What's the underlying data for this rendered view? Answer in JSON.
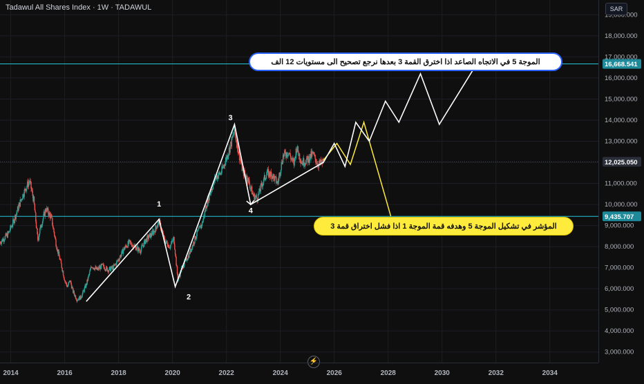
{
  "header": {
    "title": "Tadawul All Shares Index · 1W · TADAWUL",
    "currency": "SAR"
  },
  "icons": {
    "footer_icon": "lightning-icon"
  },
  "colors": {
    "background": "#0f0f0f",
    "hline": "#26c6da",
    "price_badge_teal": "#1e8a99",
    "price_badge_dark": "#2a2e39",
    "up": "#26a69a",
    "down": "#ef5350",
    "path_white": "#ffffff",
    "path_yellow": "#ffeb3b"
  },
  "annotations": {
    "callout_white": "الموجة 5 في الاتجاه الصاعد اذا اخترق القمة 3 بعدها نرجع تصحيح الى مستويات 12 الف",
    "callout_yellow": "المؤشر في تشكيل الموجة 5 وهدفه قمة الموجة 1 اذا فشل اختراق قمة 3"
  },
  "chart_data": {
    "type": "line",
    "title": "Tadawul All Shares Index · 1W · TADAWUL",
    "y_axis": {
      "position": "right",
      "ticks": [
        3000,
        4000,
        5000,
        6000,
        7000,
        8000,
        9000,
        10000,
        11000,
        12000,
        13000,
        14000,
        15000,
        16000,
        17000,
        18000,
        19000
      ],
      "tick_labels": [
        "3,000.000",
        "4,000.000",
        "5,000.000",
        "6,000.000",
        "7,000.000",
        "8,000.000",
        "9,000.000",
        "10,000.000",
        "11,000.000",
        "12,000.000",
        "13,000.000",
        "14,000.000",
        "15,000.000",
        "16,000.000",
        "17,000.000",
        "18,000.000",
        "19,000.000"
      ],
      "range": [
        2500,
        19700
      ]
    },
    "x_axis": {
      "ticks": [
        2014,
        2016,
        2018,
        2020,
        2022,
        2024,
        2026,
        2028,
        2030,
        2032,
        2034
      ],
      "tick_labels": [
        "2014",
        "2016",
        "2018",
        "2020",
        "2022",
        "2024",
        "2026",
        "2028",
        "2030",
        "2032",
        "2034"
      ],
      "range": [
        2013.6,
        2035.8
      ]
    },
    "horizontal_lines": [
      {
        "value": 16668.541,
        "label": "16,668.541",
        "style": "teal"
      },
      {
        "value": 12025.05,
        "label": "12,025.050",
        "style": "dark"
      },
      {
        "value": 9435.707,
        "label": "9,435.707",
        "style": "teal"
      }
    ],
    "price_series": [
      [
        2013.6,
        8200
      ],
      [
        2013.9,
        8600
      ],
      [
        2014.1,
        9200
      ],
      [
        2014.4,
        10300
      ],
      [
        2014.6,
        10900
      ],
      [
        2014.7,
        11100
      ],
      [
        2014.85,
        10200
      ],
      [
        2015.0,
        8300
      ],
      [
        2015.1,
        8900
      ],
      [
        2015.3,
        9800
      ],
      [
        2015.5,
        9400
      ],
      [
        2015.7,
        8000
      ],
      [
        2015.9,
        7000
      ],
      [
        2016.0,
        6400
      ],
      [
        2016.1,
        6100
      ],
      [
        2016.2,
        6400
      ],
      [
        2016.3,
        5900
      ],
      [
        2016.45,
        5500
      ],
      [
        2016.6,
        5600
      ],
      [
        2016.8,
        6200
      ],
      [
        2017.0,
        7100
      ],
      [
        2017.2,
        6900
      ],
      [
        2017.4,
        7100
      ],
      [
        2017.6,
        6900
      ],
      [
        2017.8,
        7000
      ],
      [
        2018.0,
        7400
      ],
      [
        2018.2,
        7900
      ],
      [
        2018.4,
        8200
      ],
      [
        2018.6,
        8000
      ],
      [
        2018.8,
        7800
      ],
      [
        2019.0,
        8300
      ],
      [
        2019.3,
        8700
      ],
      [
        2019.5,
        9200
      ],
      [
        2019.7,
        8300
      ],
      [
        2019.9,
        8000
      ],
      [
        2020.05,
        8400
      ],
      [
        2020.2,
        6400
      ],
      [
        2020.35,
        7000
      ],
      [
        2020.6,
        7600
      ],
      [
        2020.9,
        8600
      ],
      [
        2021.1,
        9100
      ],
      [
        2021.3,
        10200
      ],
      [
        2021.6,
        11300
      ],
      [
        2021.8,
        11500
      ],
      [
        2022.0,
        12200
      ],
      [
        2022.15,
        12800
      ],
      [
        2022.3,
        13500
      ],
      [
        2022.45,
        12500
      ],
      [
        2022.6,
        11600
      ],
      [
        2022.8,
        11200
      ],
      [
        2023.0,
        10400
      ],
      [
        2023.15,
        10300
      ],
      [
        2023.3,
        10900
      ],
      [
        2023.5,
        11500
      ],
      [
        2023.7,
        11400
      ],
      [
        2023.9,
        11000
      ],
      [
        2024.1,
        12300
      ],
      [
        2024.3,
        12500
      ],
      [
        2024.5,
        11900
      ],
      [
        2024.6,
        12700
      ],
      [
        2024.8,
        12000
      ],
      [
        2025.0,
        12100
      ],
      [
        2025.2,
        12400
      ],
      [
        2025.4,
        11900
      ],
      [
        2025.6,
        12000
      ]
    ],
    "wave_labels": [
      {
        "label": "1",
        "x": 2019.5,
        "y": 9900
      },
      {
        "label": "2",
        "x": 2020.6,
        "y": 5500
      },
      {
        "label": "3",
        "x": 2022.15,
        "y": 14000
      },
      {
        "label": "4",
        "x": 2022.9,
        "y": 9600
      }
    ],
    "white_path": [
      [
        2016.8,
        5400
      ],
      [
        2019.5,
        9300
      ],
      [
        2020.1,
        6100
      ],
      [
        2022.3,
        13800
      ],
      [
        2022.9,
        10000
      ],
      [
        2025.6,
        12000
      ],
      [
        2026.0,
        12900
      ],
      [
        2026.4,
        11800
      ],
      [
        2026.8,
        13900
      ],
      [
        2027.3,
        13000
      ],
      [
        2027.9,
        14900
      ],
      [
        2028.4,
        13900
      ],
      [
        2029.2,
        16200
      ],
      [
        2029.9,
        13800
      ],
      [
        2031.3,
        16700
      ]
    ],
    "white_arrow_heads": [
      [
        2022.9,
        10000
      ],
      [
        2031.3,
        16700
      ]
    ],
    "yellow_path": [
      [
        2025.6,
        12100
      ],
      [
        2026.1,
        12900
      ],
      [
        2026.6,
        11900
      ],
      [
        2027.1,
        13900
      ],
      [
        2028.1,
        9440
      ]
    ],
    "candle_colors": {
      "up": "#26a69a",
      "down": "#ef5350"
    }
  }
}
